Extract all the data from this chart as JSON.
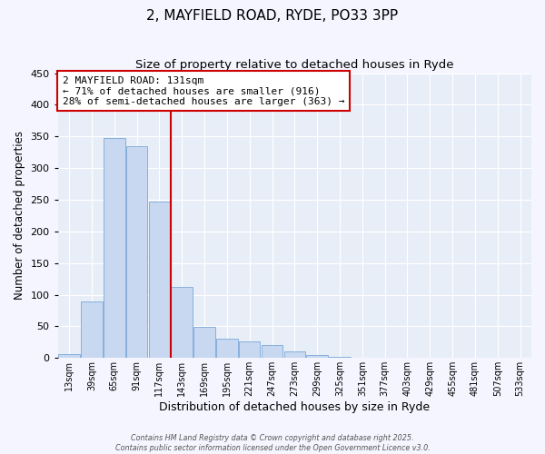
{
  "title": "2, MAYFIELD ROAD, RYDE, PO33 3PP",
  "subtitle": "Size of property relative to detached houses in Ryde",
  "xlabel": "Distribution of detached houses by size in Ryde",
  "ylabel": "Number of detached properties",
  "bar_color": "#c8d8f0",
  "bar_edge_color": "#7aa8d8",
  "background_color": "#e8eef8",
  "grid_color": "#ffffff",
  "fig_facecolor": "#f5f5ff",
  "categories": [
    "13sqm",
    "39sqm",
    "65sqm",
    "91sqm",
    "117sqm",
    "143sqm",
    "169sqm",
    "195sqm",
    "221sqm",
    "247sqm",
    "273sqm",
    "299sqm",
    "325sqm",
    "351sqm",
    "377sqm",
    "403sqm",
    "429sqm",
    "455sqm",
    "481sqm",
    "507sqm",
    "533sqm"
  ],
  "values": [
    6,
    89,
    348,
    335,
    247,
    112,
    49,
    31,
    26,
    21,
    10,
    5,
    2,
    1,
    1,
    1,
    0,
    0,
    0,
    1,
    0
  ],
  "ylim": [
    0,
    450
  ],
  "yticks": [
    0,
    50,
    100,
    150,
    200,
    250,
    300,
    350,
    400,
    450
  ],
  "annotation_title": "2 MAYFIELD ROAD: 131sqm",
  "annotation_line1": "← 71% of detached houses are smaller (916)",
  "annotation_line2": "28% of semi-detached houses are larger (363) →",
  "vline_index": 5,
  "vline_color": "#cc0000",
  "annotation_box_edge": "#cc0000",
  "footer_line1": "Contains HM Land Registry data © Crown copyright and database right 2025.",
  "footer_line2": "Contains public sector information licensed under the Open Government Licence v3.0."
}
